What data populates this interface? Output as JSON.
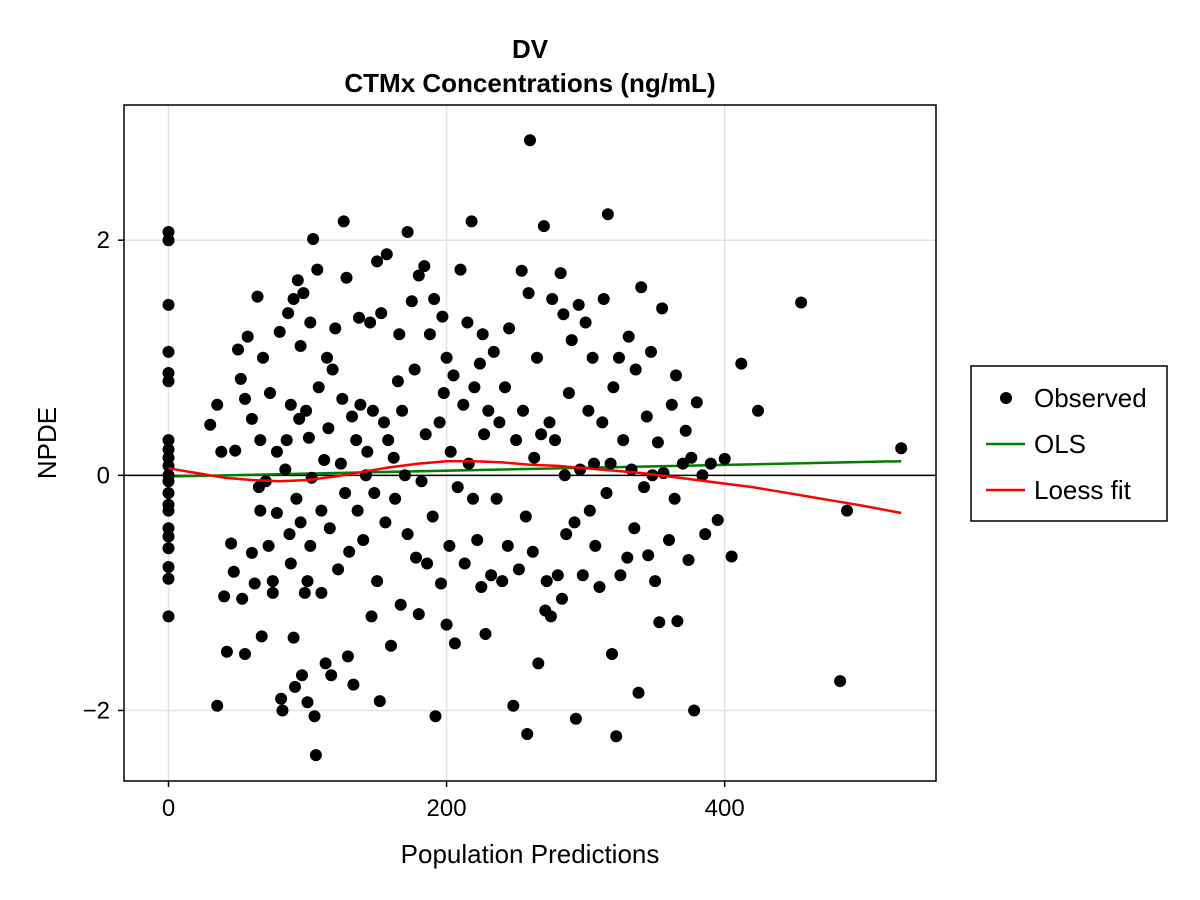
{
  "chart_data": {
    "type": "scatter",
    "title": "DV",
    "subtitle": "CTMx Concentrations (ng/mL)",
    "xlabel": "Population Predictions",
    "ylabel": "NPDE",
    "xlim": [
      -32,
      552
    ],
    "ylim": [
      -2.6,
      3.15
    ],
    "xticks": [
      0,
      200,
      400
    ],
    "xtick_labels": [
      "0",
      "200",
      "400"
    ],
    "yticks": [
      -2,
      0,
      2
    ],
    "ytick_labels": [
      "−2",
      "0",
      "2"
    ],
    "grid": true,
    "reference_line_y": 0,
    "legend": {
      "placement": "right",
      "entries": [
        {
          "label": "Observed",
          "marker": "circle",
          "color": "#000000"
        },
        {
          "label": "OLS",
          "marker": "line",
          "color": "#008000"
        },
        {
          "label": "Loess fit",
          "marker": "line",
          "color": "#ff0000"
        }
      ]
    },
    "series": [
      {
        "name": "Observed",
        "kind": "scatter",
        "color": "#000000",
        "points": [
          [
            0,
            2.07
          ],
          [
            0,
            2.0
          ],
          [
            0,
            1.45
          ],
          [
            0,
            1.05
          ],
          [
            0,
            0.87
          ],
          [
            0,
            0.8
          ],
          [
            0,
            0.3
          ],
          [
            0,
            0.22
          ],
          [
            0,
            0.15
          ],
          [
            0,
            0.08
          ],
          [
            0,
            0.0
          ],
          [
            0,
            -0.05
          ],
          [
            0,
            -0.15
          ],
          [
            0,
            -0.25
          ],
          [
            0,
            -0.3
          ],
          [
            0,
            -0.45
          ],
          [
            0,
            -0.52
          ],
          [
            0,
            -0.62
          ],
          [
            0,
            -0.78
          ],
          [
            0,
            -0.88
          ],
          [
            0,
            -1.2
          ],
          [
            30,
            0.43
          ],
          [
            35,
            0.6
          ],
          [
            35,
            -1.96
          ],
          [
            38,
            0.2
          ],
          [
            40,
            -1.03
          ],
          [
            42,
            -1.5
          ],
          [
            45,
            -0.58
          ],
          [
            47,
            -0.82
          ],
          [
            48,
            0.21
          ],
          [
            50,
            1.07
          ],
          [
            52,
            0.82
          ],
          [
            53,
            -1.05
          ],
          [
            55,
            -1.52
          ],
          [
            55,
            0.65
          ],
          [
            57,
            1.18
          ],
          [
            60,
            -0.66
          ],
          [
            60,
            0.48
          ],
          [
            62,
            -0.92
          ],
          [
            64,
            1.52
          ],
          [
            65,
            -0.1
          ],
          [
            66,
            -0.3
          ],
          [
            66,
            0.3
          ],
          [
            67,
            -1.37
          ],
          [
            68,
            1.0
          ],
          [
            70,
            -0.05
          ],
          [
            72,
            -0.6
          ],
          [
            73,
            0.7
          ],
          [
            75,
            -0.9
          ],
          [
            75,
            -1.0
          ],
          [
            78,
            -0.32
          ],
          [
            78,
            0.2
          ],
          [
            80,
            1.22
          ],
          [
            81,
            -1.9
          ],
          [
            82,
            -2.0
          ],
          [
            84,
            0.05
          ],
          [
            85,
            0.3
          ],
          [
            86,
            1.38
          ],
          [
            87,
            -0.5
          ],
          [
            88,
            0.6
          ],
          [
            88,
            -0.75
          ],
          [
            90,
            1.5
          ],
          [
            90,
            -1.38
          ],
          [
            91,
            -1.8
          ],
          [
            92,
            -0.2
          ],
          [
            93,
            1.66
          ],
          [
            94,
            0.48
          ],
          [
            95,
            1.1
          ],
          [
            95,
            -0.4
          ],
          [
            96,
            -1.7
          ],
          [
            97,
            1.55
          ],
          [
            98,
            -1.0
          ],
          [
            99,
            0.55
          ],
          [
            100,
            -0.9
          ],
          [
            100,
            -1.93
          ],
          [
            101,
            0.32
          ],
          [
            102,
            1.3
          ],
          [
            102,
            -0.6
          ],
          [
            103,
            -0.02
          ],
          [
            104,
            2.01
          ],
          [
            105,
            -2.05
          ],
          [
            106,
            -2.38
          ],
          [
            107,
            1.75
          ],
          [
            108,
            0.75
          ],
          [
            110,
            -1.0
          ],
          [
            110,
            -0.3
          ],
          [
            112,
            0.13
          ],
          [
            113,
            -1.6
          ],
          [
            114,
            1.0
          ],
          [
            115,
            0.4
          ],
          [
            116,
            -0.45
          ],
          [
            117,
            -1.7
          ],
          [
            118,
            0.9
          ],
          [
            120,
            1.25
          ],
          [
            122,
            -0.8
          ],
          [
            124,
            0.1
          ],
          [
            125,
            0.65
          ],
          [
            126,
            2.16
          ],
          [
            127,
            -0.15
          ],
          [
            128,
            1.68
          ],
          [
            129,
            -1.54
          ],
          [
            130,
            -0.65
          ],
          [
            132,
            0.5
          ],
          [
            133,
            -1.78
          ],
          [
            135,
            0.3
          ],
          [
            136,
            -0.3
          ],
          [
            137,
            1.34
          ],
          [
            138,
            0.6
          ],
          [
            140,
            -0.55
          ],
          [
            142,
            0.0
          ],
          [
            143,
            0.2
          ],
          [
            145,
            1.3
          ],
          [
            146,
            -1.2
          ],
          [
            147,
            0.55
          ],
          [
            148,
            -0.15
          ],
          [
            150,
            1.82
          ],
          [
            150,
            -0.9
          ],
          [
            152,
            -1.92
          ],
          [
            153,
            1.38
          ],
          [
            155,
            0.45
          ],
          [
            156,
            -0.4
          ],
          [
            157,
            1.88
          ],
          [
            158,
            0.3
          ],
          [
            160,
            -1.45
          ],
          [
            162,
            0.15
          ],
          [
            163,
            -0.2
          ],
          [
            165,
            0.8
          ],
          [
            166,
            1.2
          ],
          [
            167,
            -1.1
          ],
          [
            168,
            0.55
          ],
          [
            170,
            0.0
          ],
          [
            172,
            2.07
          ],
          [
            172,
            -0.5
          ],
          [
            175,
            1.48
          ],
          [
            177,
            0.9
          ],
          [
            178,
            -0.7
          ],
          [
            180,
            1.7
          ],
          [
            180,
            -1.18
          ],
          [
            182,
            -0.05
          ],
          [
            184,
            1.78
          ],
          [
            185,
            0.35
          ],
          [
            186,
            -0.75
          ],
          [
            188,
            1.2
          ],
          [
            190,
            -0.35
          ],
          [
            191,
            1.5
          ],
          [
            192,
            -2.05
          ],
          [
            195,
            0.45
          ],
          [
            196,
            -0.92
          ],
          [
            197,
            1.35
          ],
          [
            198,
            0.7
          ],
          [
            200,
            -1.27
          ],
          [
            200,
            1.0
          ],
          [
            202,
            -0.6
          ],
          [
            203,
            0.2
          ],
          [
            205,
            0.85
          ],
          [
            206,
            -1.43
          ],
          [
            208,
            -0.1
          ],
          [
            210,
            1.75
          ],
          [
            212,
            0.6
          ],
          [
            213,
            -0.75
          ],
          [
            215,
            1.3
          ],
          [
            216,
            0.1
          ],
          [
            218,
            2.16
          ],
          [
            219,
            -0.2
          ],
          [
            220,
            0.75
          ],
          [
            222,
            -0.55
          ],
          [
            224,
            0.95
          ],
          [
            225,
            -0.95
          ],
          [
            226,
            1.2
          ],
          [
            227,
            0.35
          ],
          [
            228,
            -1.35
          ],
          [
            230,
            0.55
          ],
          [
            232,
            -0.85
          ],
          [
            234,
            1.05
          ],
          [
            236,
            -0.2
          ],
          [
            238,
            0.45
          ],
          [
            240,
            -0.9
          ],
          [
            242,
            0.75
          ],
          [
            244,
            -0.6
          ],
          [
            245,
            1.25
          ],
          [
            248,
            -1.96
          ],
          [
            250,
            0.3
          ],
          [
            252,
            -0.8
          ],
          [
            254,
            1.74
          ],
          [
            255,
            0.55
          ],
          [
            257,
            -0.35
          ],
          [
            258,
            -2.2
          ],
          [
            259,
            1.55
          ],
          [
            260,
            2.85
          ],
          [
            262,
            -0.65
          ],
          [
            263,
            0.15
          ],
          [
            265,
            1.0
          ],
          [
            266,
            -1.6
          ],
          [
            268,
            0.35
          ],
          [
            270,
            2.12
          ],
          [
            271,
            -1.15
          ],
          [
            272,
            -0.9
          ],
          [
            274,
            0.45
          ],
          [
            275,
            -1.2
          ],
          [
            276,
            1.5
          ],
          [
            278,
            0.3
          ],
          [
            280,
            -0.85
          ],
          [
            282,
            1.72
          ],
          [
            283,
            -1.05
          ],
          [
            284,
            1.37
          ],
          [
            285,
            0.0
          ],
          [
            286,
            -0.5
          ],
          [
            288,
            0.7
          ],
          [
            290,
            1.15
          ],
          [
            292,
            -0.4
          ],
          [
            293,
            -2.07
          ],
          [
            295,
            1.45
          ],
          [
            296,
            0.05
          ],
          [
            298,
            -0.85
          ],
          [
            300,
            1.3
          ],
          [
            302,
            0.55
          ],
          [
            303,
            -0.3
          ],
          [
            305,
            1.0
          ],
          [
            306,
            0.1
          ],
          [
            307,
            -0.6
          ],
          [
            310,
            -0.95
          ],
          [
            312,
            0.45
          ],
          [
            313,
            1.5
          ],
          [
            315,
            -0.15
          ],
          [
            316,
            2.22
          ],
          [
            318,
            0.1
          ],
          [
            319,
            -1.52
          ],
          [
            320,
            0.75
          ],
          [
            322,
            -2.22
          ],
          [
            324,
            1.0
          ],
          [
            325,
            -0.85
          ],
          [
            327,
            0.3
          ],
          [
            330,
            -0.7
          ],
          [
            331,
            1.18
          ],
          [
            333,
            0.05
          ],
          [
            335,
            -0.45
          ],
          [
            336,
            0.9
          ],
          [
            338,
            -1.85
          ],
          [
            340,
            1.6
          ],
          [
            342,
            -0.1
          ],
          [
            344,
            0.5
          ],
          [
            345,
            -0.68
          ],
          [
            347,
            1.05
          ],
          [
            348,
            0.0
          ],
          [
            350,
            -0.9
          ],
          [
            352,
            0.28
          ],
          [
            353,
            -1.25
          ],
          [
            355,
            1.42
          ],
          [
            356,
            0.02
          ],
          [
            360,
            -0.55
          ],
          [
            362,
            0.6
          ],
          [
            364,
            -0.2
          ],
          [
            365,
            0.85
          ],
          [
            366,
            -1.24
          ],
          [
            370,
            0.1
          ],
          [
            372,
            0.38
          ],
          [
            374,
            -0.72
          ],
          [
            376,
            0.15
          ],
          [
            378,
            -2.0
          ],
          [
            380,
            0.62
          ],
          [
            384,
            0.0
          ],
          [
            386,
            -0.5
          ],
          [
            390,
            0.1
          ],
          [
            395,
            -0.38
          ],
          [
            400,
            0.14
          ],
          [
            405,
            -0.69
          ],
          [
            412,
            0.95
          ],
          [
            424,
            0.55
          ],
          [
            455,
            1.47
          ],
          [
            483,
            -1.75
          ],
          [
            488,
            -0.3
          ],
          [
            527,
            0.23
          ]
        ]
      },
      {
        "name": "OLS",
        "kind": "line",
        "color": "#008000",
        "x": [
          0,
          527
        ],
        "y": [
          -0.01,
          0.12
        ]
      },
      {
        "name": "Loess fit",
        "kind": "line",
        "color": "#ff0000",
        "x": [
          0,
          20,
          40,
          60,
          80,
          100,
          120,
          140,
          160,
          180,
          200,
          220,
          240,
          260,
          280,
          300,
          320,
          340,
          360,
          380,
          400,
          420,
          440,
          460,
          480,
          500,
          527
        ],
        "y": [
          0.06,
          0.02,
          -0.02,
          -0.04,
          -0.05,
          -0.04,
          -0.01,
          0.03,
          0.07,
          0.1,
          0.12,
          0.12,
          0.11,
          0.09,
          0.08,
          0.06,
          0.04,
          0.02,
          -0.01,
          -0.04,
          -0.07,
          -0.1,
          -0.14,
          -0.18,
          -0.22,
          -0.26,
          -0.32
        ]
      }
    ]
  }
}
